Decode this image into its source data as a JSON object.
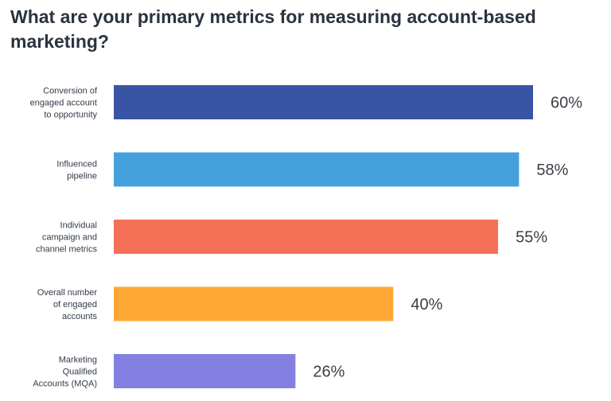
{
  "chart_data": {
    "type": "bar",
    "orientation": "horizontal",
    "title": "What are your primary metrics for measuring account-based marketing?",
    "categories": [
      "Conversion of engaged account to opportunity",
      "Influenced pipeline",
      "Individual campaign and channel metrics",
      "Overall number of engaged accounts",
      "Marketing Qualified Accounts (MQA)"
    ],
    "category_lines": [
      [
        "Conversion of",
        "engaged account",
        "to opportunity"
      ],
      [
        "Influenced",
        "pipeline"
      ],
      [
        "Individual",
        "campaign and",
        "channel metrics"
      ],
      [
        "Overall number",
        "of engaged",
        "accounts"
      ],
      [
        "Marketing",
        "Qualified",
        "Accounts (MQA)"
      ]
    ],
    "values": [
      60,
      58,
      55,
      40,
      26
    ],
    "value_labels": [
      "60%",
      "58%",
      "55%",
      "40%",
      "26%"
    ],
    "unit": "%",
    "xlim": [
      0,
      100
    ],
    "colors": [
      "#3a54a5",
      "#45a1dc",
      "#f47158",
      "#ffa733",
      "#8380e2"
    ],
    "grid": false,
    "legend": "none"
  }
}
